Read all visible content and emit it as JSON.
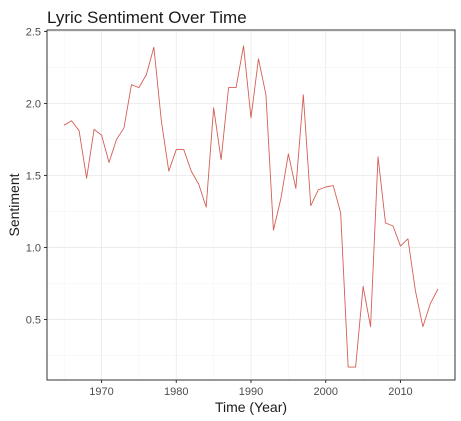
{
  "chart_data": {
    "type": "line",
    "title": "Lyric Sentiment Over Time",
    "xlabel": "Time (Year)",
    "ylabel": "Sentiment",
    "xlim": [
      1962.7,
      2017.3
    ],
    "ylim": [
      0.08,
      2.51
    ],
    "x_ticks": [
      1970,
      1980,
      1990,
      2000,
      2010
    ],
    "x_tick_labels": [
      "1970",
      "1980",
      "1990",
      "2000",
      "2010"
    ],
    "y_ticks": [
      0.5,
      1.0,
      1.5,
      2.0,
      2.5
    ],
    "y_tick_labels": [
      "0.5",
      "1.0",
      "1.5",
      "2.0",
      "2.5"
    ],
    "grid": true,
    "legend": "none",
    "line_color": "#d55e55",
    "series": [
      {
        "x": [
          1965,
          1966,
          1967,
          1968,
          1969,
          1970,
          1971,
          1972,
          1973,
          1974,
          1975,
          1976,
          1977,
          1978,
          1979,
          1980,
          1981,
          1982,
          1983,
          1984,
          1985,
          1986,
          1987,
          1988,
          1989,
          1990,
          1991,
          1992,
          1993,
          1994,
          1995,
          1996,
          1997,
          1998,
          1999,
          2000,
          2001,
          2002,
          2003,
          2004,
          2005,
          2006,
          2007,
          2008,
          2009,
          2010,
          2011,
          2012,
          2013,
          2014,
          2015
        ],
        "values": [
          1.85,
          1.88,
          1.81,
          1.48,
          1.82,
          1.78,
          1.59,
          1.75,
          1.83,
          2.13,
          2.11,
          2.2,
          2.39,
          1.88,
          1.53,
          1.68,
          1.68,
          1.53,
          1.44,
          1.28,
          1.97,
          1.61,
          2.11,
          2.11,
          2.4,
          1.9,
          2.31,
          2.06,
          1.12,
          1.34,
          1.65,
          1.41,
          2.06,
          1.29,
          1.4,
          1.42,
          1.43,
          1.24,
          0.17,
          0.17,
          0.73,
          0.45,
          1.63,
          1.17,
          1.15,
          1.01,
          1.06,
          0.7,
          0.45,
          0.61,
          0.71
        ]
      }
    ]
  }
}
